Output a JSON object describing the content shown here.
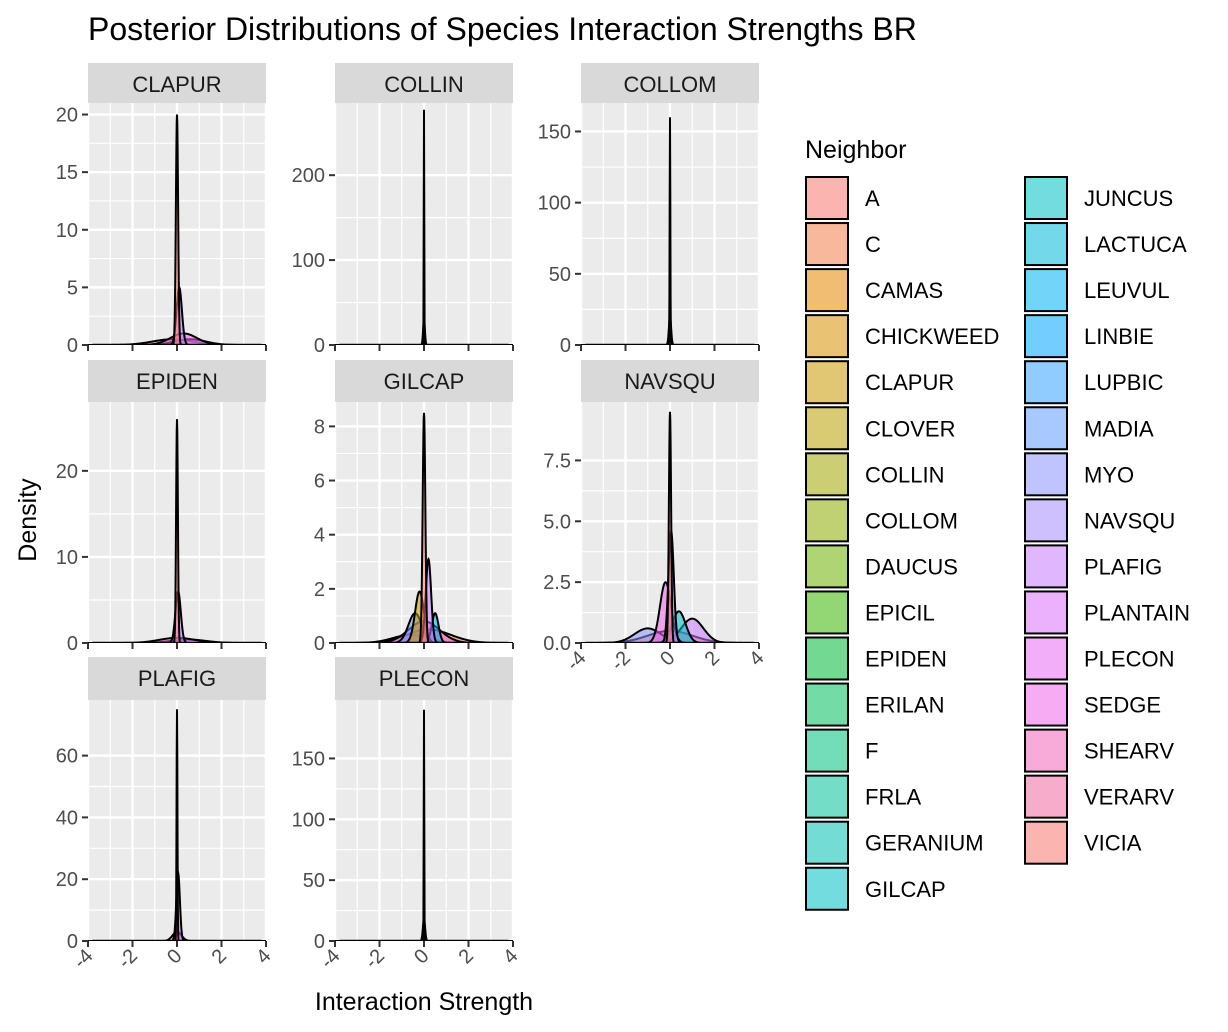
{
  "chart_data": {
    "type": "area",
    "title": "Posterior Distributions of Species Interaction Strengths BR",
    "xlabel": "Interaction Strength",
    "ylabel": "Density",
    "legend": {
      "title": "Neighbor",
      "placement": "right",
      "entries": [
        {
          "name": "A",
          "color": "#F8766D"
        },
        {
          "name": "C",
          "color": "#F07D48"
        },
        {
          "name": "CAMAS",
          "color": "#E58700"
        },
        {
          "name": "CHICKWEED",
          "color": "#D89000"
        },
        {
          "name": "CLAPUR",
          "color": "#C99800"
        },
        {
          "name": "CLOVER",
          "color": "#B9A000"
        },
        {
          "name": "COLLIN",
          "color": "#A3A500"
        },
        {
          "name": "COLLOM",
          "color": "#8AAB00"
        },
        {
          "name": "DAUCUS",
          "color": "#6BB100"
        },
        {
          "name": "EPICIL",
          "color": "#39B600"
        },
        {
          "name": "EPIDEN",
          "color": "#00BA38"
        },
        {
          "name": "ERILAN",
          "color": "#00BD5C"
        },
        {
          "name": "F",
          "color": "#00BF7D"
        },
        {
          "name": "FRLA",
          "color": "#00C199"
        },
        {
          "name": "GERANIUM",
          "color": "#00C0B2"
        },
        {
          "name": "GILCAP",
          "color": "#00BFC4"
        },
        {
          "name": "JUNCUS",
          "color": "#00BFC4"
        },
        {
          "name": "LACTUCA",
          "color": "#00B8D9"
        },
        {
          "name": "LEUVUL",
          "color": "#00B0F6"
        },
        {
          "name": "LINBIE",
          "color": "#00A5FF"
        },
        {
          "name": "LUPBIC",
          "color": "#35A2FF"
        },
        {
          "name": "MADIA",
          "color": "#619CFF"
        },
        {
          "name": "MYO",
          "color": "#8B93FF"
        },
        {
          "name": "NAVSQU",
          "color": "#A58AFF"
        },
        {
          "name": "PLAFIG",
          "color": "#C77CFF"
        },
        {
          "name": "PLANTAIN",
          "color": "#DC71FA"
        },
        {
          "name": "PLECON",
          "color": "#E76BF3"
        },
        {
          "name": "SEDGE",
          "color": "#F166E8"
        },
        {
          "name": "SHEARV",
          "color": "#F265BA"
        },
        {
          "name": "VERARV",
          "color": "#F368A0"
        },
        {
          "name": "VICIA",
          "color": "#F8766D"
        }
      ]
    },
    "x_ticks": [
      "-4",
      "-2",
      "0",
      "2",
      "4"
    ],
    "xlim": [
      -4,
      4
    ],
    "panels": [
      {
        "title": "CLAPUR",
        "ylim": [
          0,
          21
        ],
        "yticks": [
          0,
          5,
          10,
          15,
          20
        ],
        "ytick_labels": [
          "0",
          "5",
          "10",
          "15",
          "20"
        ],
        "peak": 20,
        "curves": [
          {
            "center": 0,
            "width": 0.05,
            "height": 20,
            "color": "#F8766D"
          },
          {
            "center": 0.1,
            "width": 0.12,
            "height": 5,
            "color": "#C77CFF"
          },
          {
            "center": -0.2,
            "width": 0.9,
            "height": 0.5,
            "color": "#F8766D"
          },
          {
            "center": 0.3,
            "width": 0.6,
            "height": 1.0,
            "color": "#F166E8"
          },
          {
            "center": 0.6,
            "width": 0.7,
            "height": 0.5,
            "color": "#A58AFF"
          }
        ]
      },
      {
        "title": "COLLIN",
        "ylim": [
          0,
          285
        ],
        "yticks": [
          0,
          100,
          200
        ],
        "ytick_labels": [
          "0",
          "100",
          "200"
        ],
        "peak": 277,
        "curves": [
          {
            "center": 0,
            "width": 0.012,
            "height": 277,
            "color": "#F8766D"
          },
          {
            "center": 0,
            "width": 0.04,
            "height": 30,
            "color": "#C77CFF"
          }
        ]
      },
      {
        "title": "COLLOM",
        "ylim": [
          0,
          170
        ],
        "yticks": [
          0,
          50,
          100,
          150
        ],
        "ytick_labels": [
          "0",
          "50",
          "100",
          "150"
        ],
        "peak": 160,
        "curves": [
          {
            "center": 0,
            "width": 0.015,
            "height": 160,
            "color": "#F8766D"
          },
          {
            "center": 0,
            "width": 0.05,
            "height": 20,
            "color": "#C77CFF"
          }
        ]
      },
      {
        "title": "EPIDEN",
        "ylim": [
          0,
          28
        ],
        "yticks": [
          0,
          10,
          20
        ],
        "ytick_labels": [
          "0",
          "10",
          "20"
        ],
        "peak": 26,
        "curves": [
          {
            "center": 0,
            "width": 0.04,
            "height": 26,
            "color": "#F8766D"
          },
          {
            "center": 0.05,
            "width": 0.12,
            "height": 6,
            "color": "#C77CFF"
          },
          {
            "center": 0,
            "width": 0.8,
            "height": 0.6,
            "color": "#F166E8"
          },
          {
            "center": 0.5,
            "width": 0.8,
            "height": 0.4,
            "color": "#619CFF"
          }
        ]
      },
      {
        "title": "GILCAP",
        "ylim": [
          0,
          8.9
        ],
        "yticks": [
          0,
          2,
          4,
          6,
          8
        ],
        "ytick_labels": [
          "0",
          "2",
          "4",
          "6",
          "8"
        ],
        "peak": 8.5,
        "curves": [
          {
            "center": 0,
            "width": 0.06,
            "height": 8.5,
            "color": "#F8766D"
          },
          {
            "center": 0.2,
            "width": 0.12,
            "height": 3.1,
            "color": "#C77CFF"
          },
          {
            "center": -0.2,
            "width": 0.2,
            "height": 1.9,
            "color": "#C99800"
          },
          {
            "center": 0.5,
            "width": 0.15,
            "height": 1.1,
            "color": "#00B0F6"
          },
          {
            "center": -0.4,
            "width": 0.3,
            "height": 1.1,
            "color": "#619CFF"
          },
          {
            "center": 0,
            "width": 0.7,
            "height": 0.8,
            "color": "#F166E8"
          },
          {
            "center": 0.2,
            "width": 1.0,
            "height": 0.5,
            "color": "#F8766D"
          },
          {
            "center": -0.6,
            "width": 0.8,
            "height": 0.3,
            "color": "#8B93FF"
          }
        ]
      },
      {
        "title": "NAVSQU",
        "ylim": [
          0,
          9.9
        ],
        "yticks": [
          0,
          2.5,
          5,
          7.5
        ],
        "ytick_labels": [
          "0.0",
          "2.5",
          "5.0",
          "7.5"
        ],
        "peak": 9.5,
        "curves": [
          {
            "center": 0,
            "width": 0.05,
            "height": 9.5,
            "color": "#F8766D"
          },
          {
            "center": 0.05,
            "width": 0.12,
            "height": 4.6,
            "color": "#A58AFF"
          },
          {
            "center": -0.2,
            "width": 0.25,
            "height": 2.5,
            "color": "#F166E8"
          },
          {
            "center": 0.4,
            "width": 0.3,
            "height": 1.3,
            "color": "#00BFC4"
          },
          {
            "center": 1.0,
            "width": 0.5,
            "height": 1.0,
            "color": "#C77CFF"
          },
          {
            "center": -1.0,
            "width": 0.6,
            "height": 0.6,
            "color": "#8B93FF"
          },
          {
            "center": 0,
            "width": 1.0,
            "height": 0.5,
            "color": "#F8766D"
          }
        ]
      },
      {
        "title": "PLAFIG",
        "ylim": [
          0,
          78
        ],
        "yticks": [
          0,
          20,
          40,
          60
        ],
        "ytick_labels": [
          "0",
          "20",
          "40",
          "60"
        ],
        "peak": 75,
        "curves": [
          {
            "center": 0,
            "width": 0.02,
            "height": 75,
            "color": "#F8766D"
          },
          {
            "center": 0.05,
            "width": 0.08,
            "height": 22,
            "color": "#C77CFF"
          },
          {
            "center": 0,
            "width": 0.2,
            "height": 3,
            "color": "#F166E8"
          }
        ]
      },
      {
        "title": "PLECON",
        "ylim": [
          0,
          198
        ],
        "yticks": [
          0,
          50,
          100,
          150
        ],
        "ytick_labels": [
          "0",
          "50",
          "100",
          "150"
        ],
        "peak": 190,
        "curves": [
          {
            "center": 0,
            "width": 0.012,
            "height": 190,
            "color": "#F8766D"
          },
          {
            "center": 0,
            "width": 0.05,
            "height": 18,
            "color": "#C77CFF"
          }
        ]
      }
    ]
  }
}
